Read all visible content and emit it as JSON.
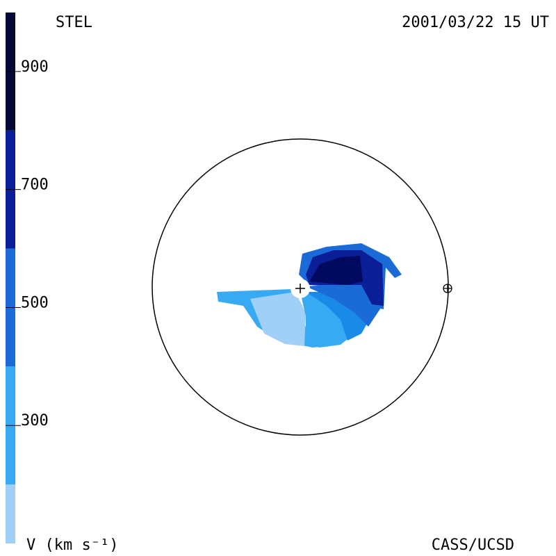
{
  "header": {
    "left": "STEL",
    "right": "2001/03/22 15 UT"
  },
  "footer": {
    "left": "V (km s⁻¹)",
    "right": "CASS/UCSD"
  },
  "colorbar": {
    "lim": [
      100,
      1000
    ],
    "ticks": [
      300,
      500,
      700,
      900
    ],
    "bands": [
      {
        "from": 100,
        "to": 200,
        "color": "#a0d0f8"
      },
      {
        "from": 200,
        "to": 400,
        "color": "#38aaf4"
      },
      {
        "from": 400,
        "to": 600,
        "color": "#1a6ad8"
      },
      {
        "from": 600,
        "to": 800,
        "color": "#0a1e98"
      },
      {
        "from": 800,
        "to": 1000,
        "color": "#020a34"
      }
    ]
  }
}
